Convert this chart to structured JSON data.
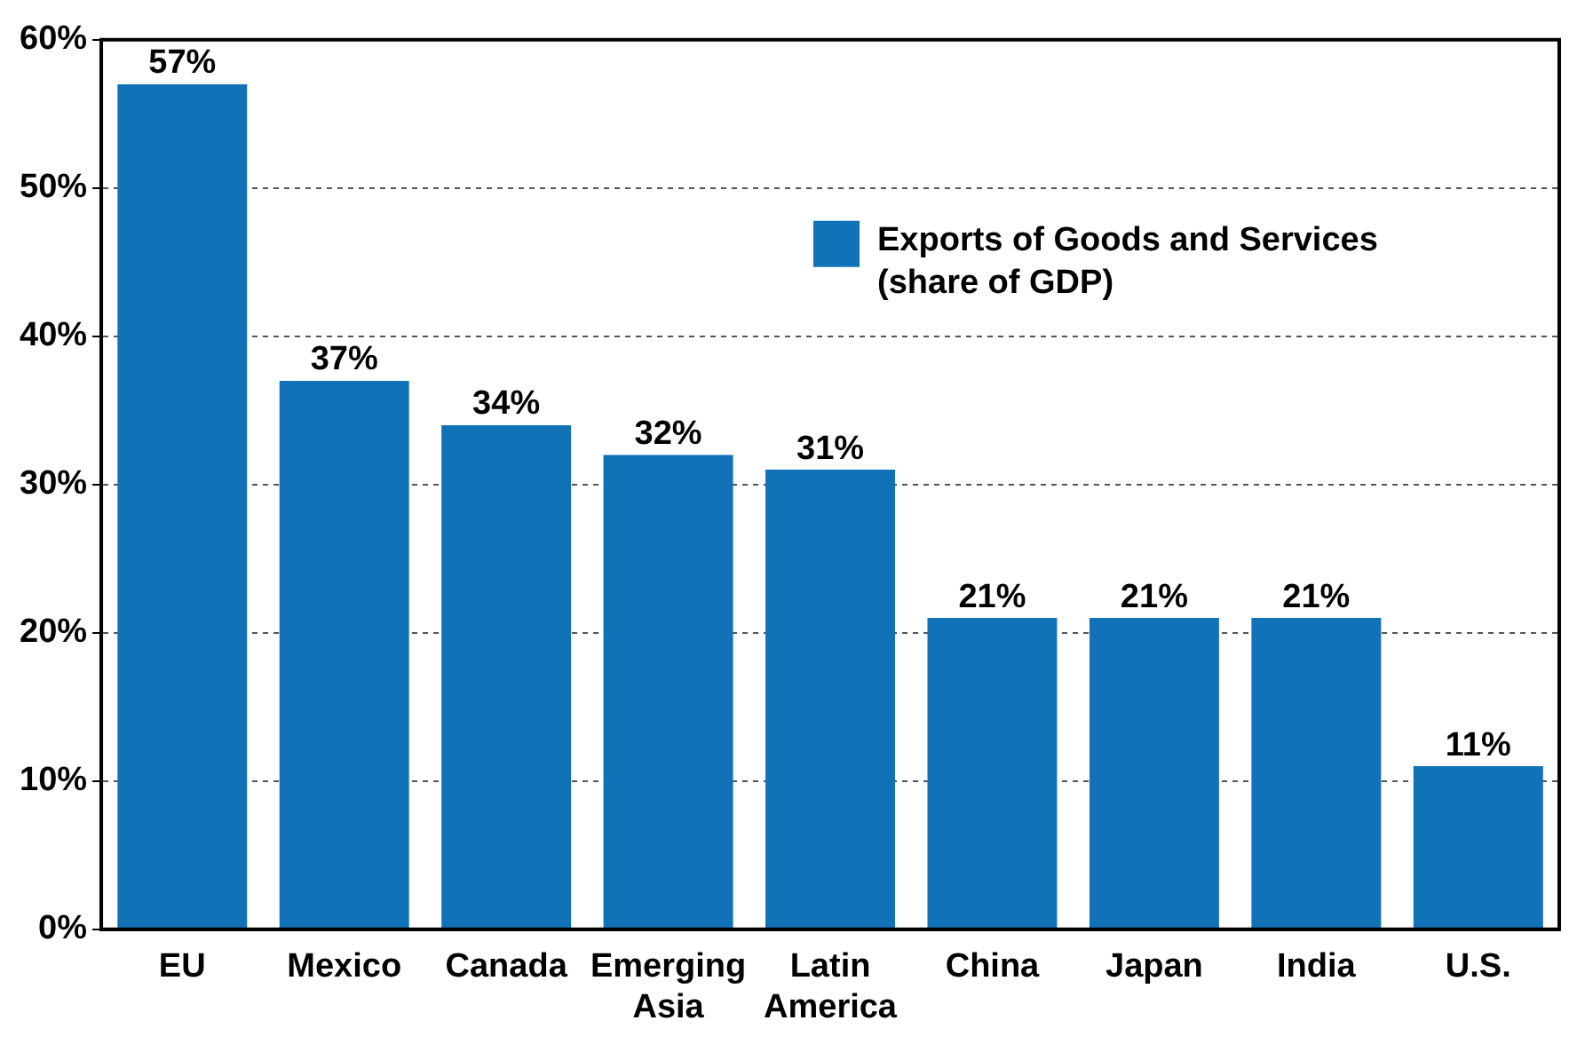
{
  "chart_data": {
    "type": "bar",
    "categories": [
      "EU",
      "Mexico",
      "Canada",
      "Emerging Asia",
      "Latin America",
      "China",
      "Japan",
      "India",
      "U.S."
    ],
    "series": [
      {
        "name": "Exports of Goods and Services (share of GDP)",
        "color": "#1172b8",
        "values": [
          57,
          37,
          34,
          32,
          31,
          21,
          21,
          21,
          11
        ],
        "value_labels": [
          "57%",
          "37%",
          "34%",
          "32%",
          "31%",
          "21%",
          "21%",
          "21%",
          "11%"
        ]
      }
    ],
    "ylim": [
      0,
      60
    ],
    "yticks": [
      {
        "value": 0,
        "label": "0%"
      },
      {
        "value": 10,
        "label": "10%"
      },
      {
        "value": 20,
        "label": "20%"
      },
      {
        "value": 30,
        "label": "30%"
      },
      {
        "value": 40,
        "label": "40%"
      },
      {
        "value": 50,
        "label": "50%"
      },
      {
        "value": 60,
        "label": "60%"
      }
    ],
    "grid": "y",
    "legend": "top right"
  }
}
